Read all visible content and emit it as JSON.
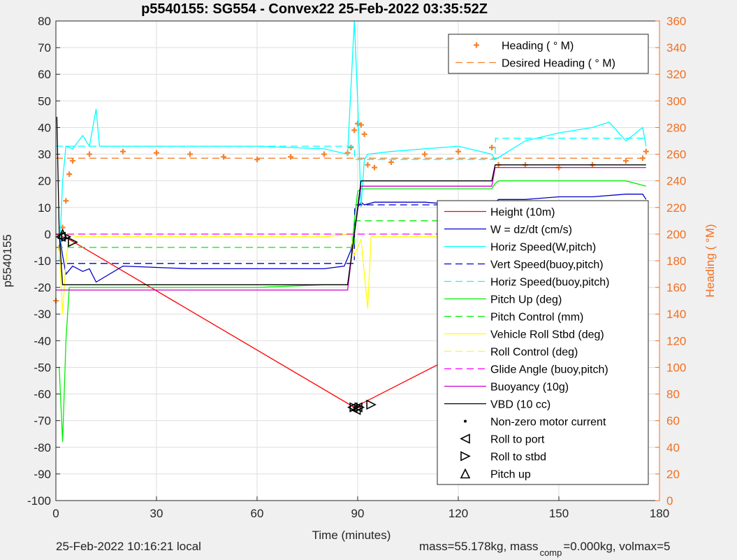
{
  "chart_data": {
    "type": "line",
    "title": "p5540155: SG554 - Convex22 25-Feb-2022 03:35:52Z",
    "xlabel": "Time (minutes)",
    "ylabel": "p5540155",
    "ylabel_right": "Heading (  °M)",
    "xlim": [
      0,
      180
    ],
    "ylim": [
      -100,
      80
    ],
    "ylim_right": [
      0,
      360
    ],
    "x_ticks": [
      0,
      30,
      60,
      90,
      120,
      150,
      180
    ],
    "y_ticks": [
      -100,
      -90,
      -80,
      -70,
      -60,
      -50,
      -40,
      -30,
      -20,
      -10,
      0,
      10,
      20,
      30,
      40,
      50,
      60,
      70,
      80
    ],
    "y_right_ticks": [
      0,
      20,
      40,
      60,
      80,
      100,
      120,
      140,
      160,
      180,
      200,
      220,
      240,
      260,
      280,
      300,
      320,
      340,
      360
    ],
    "grid": true,
    "legend_top_position": "top-right",
    "legend_main_position": "lower-right",
    "colors": {
      "red": "#ff0000",
      "blue": "#0000cc",
      "cyan": "#00ffff",
      "green": "#00ee00",
      "yellow": "#ffff00",
      "magenta": "#ff00ff",
      "purple": "#cc00cc",
      "black": "#000000",
      "orange": "#f5822e",
      "orange_axis": "#f26f21"
    },
    "series": [
      {
        "name": "Heading (  ° M)",
        "axis": "right",
        "style": "marker",
        "color": "#f5822e",
        "x": [
          0,
          1,
          2,
          3,
          4,
          5,
          10,
          20,
          30,
          40,
          50,
          60,
          70,
          80,
          87,
          88,
          89,
          90,
          91,
          92,
          93,
          95,
          100,
          110,
          120,
          130,
          132,
          140,
          150,
          160,
          170,
          175,
          176
        ],
        "y": [
          150,
          190,
          205,
          225,
          245,
          255,
          260,
          262,
          261,
          260,
          258,
          256,
          258,
          260,
          261,
          265,
          278,
          283,
          282,
          275,
          252,
          250,
          254,
          260,
          262,
          265,
          252,
          252,
          250,
          252,
          255,
          257,
          262
        ]
      },
      {
        "name": "Desired Heading (      ° M)",
        "axis": "right",
        "style": "dashed",
        "color": "#f5822e",
        "x": [
          0,
          176
        ],
        "y": [
          257,
          257
        ]
      },
      {
        "name": "Height (10m)",
        "axis": "left",
        "style": "solid",
        "color": "#ff0000",
        "x": [
          0,
          4,
          89,
          131,
          176
        ],
        "y": [
          0,
          -2,
          -65,
          -38,
          0
        ]
      },
      {
        "name": "W = dz/dt (cm/s)",
        "axis": "left",
        "style": "solid",
        "color": "#0000cc",
        "x": [
          1,
          2,
          3,
          5,
          8,
          10,
          12,
          20,
          40,
          60,
          80,
          86,
          88,
          89,
          90,
          91,
          92,
          95,
          110,
          120,
          130,
          131,
          132,
          140,
          150,
          160,
          170,
          175,
          176
        ],
        "y": [
          0,
          -8,
          -15,
          -12,
          -14,
          -13,
          -18,
          -12,
          -13,
          -13,
          -13,
          -12,
          -6,
          0,
          10,
          12,
          11,
          12,
          12,
          11,
          11,
          12,
          13,
          13,
          14,
          14,
          15,
          15,
          13
        ]
      },
      {
        "name": "Horiz Speed(W,pitch)",
        "axis": "left",
        "style": "solid",
        "color": "#00ffff",
        "x": [
          1,
          2,
          3,
          5,
          8,
          10,
          12,
          13,
          20,
          40,
          60,
          80,
          87,
          89,
          90,
          91,
          92,
          93,
          100,
          110,
          120,
          130,
          131,
          140,
          150,
          160,
          165,
          170,
          175,
          176
        ],
        "y": [
          -10,
          20,
          33,
          32,
          37,
          33,
          47,
          33,
          33,
          33,
          33,
          32,
          30,
          80,
          50,
          10,
          28,
          30,
          31,
          32,
          33,
          30,
          28,
          35,
          38,
          40,
          42,
          35,
          40,
          33
        ]
      },
      {
        "name": "Vert Speed(buoy,pitch)",
        "axis": "left",
        "style": "dashed",
        "color": "#0000cc",
        "x": [
          0,
          89,
          89.1,
          176
        ],
        "y": [
          -11,
          -11,
          11,
          11
        ]
      },
      {
        "name": "Horiz Speed(buoy,pitch)",
        "axis": "left",
        "style": "dashed",
        "color": "#00ffff",
        "x": [
          0,
          89,
          89.1,
          131,
          131.1,
          176
        ],
        "y": [
          33,
          33,
          28,
          28,
          36,
          36
        ]
      },
      {
        "name": "Pitch Up (deg)",
        "axis": "left",
        "style": "solid",
        "color": "#00ee00",
        "x": [
          1,
          2,
          3,
          4,
          6,
          10,
          20,
          40,
          60,
          80,
          87,
          88,
          89,
          90,
          91,
          92,
          100,
          110,
          120,
          130,
          131,
          132,
          140,
          150,
          160,
          170,
          176
        ],
        "y": [
          -50,
          -78,
          -40,
          -20,
          -20,
          -20,
          -20,
          -20,
          -20,
          -19,
          -19,
          -10,
          5,
          16,
          17,
          17,
          17,
          17,
          17,
          17,
          19,
          20,
          20,
          20,
          20,
          20,
          18
        ]
      },
      {
        "name": "Pitch Control (mm)",
        "axis": "left",
        "style": "dashed",
        "color": "#00ee00",
        "x": [
          0,
          89,
          89.1,
          176
        ],
        "y": [
          -5,
          -5,
          5,
          5
        ]
      },
      {
        "name": "Vehicle Roll Stbd (deg)",
        "axis": "left",
        "style": "solid",
        "color": "#ffff00",
        "x": [
          1,
          2,
          3,
          4,
          6,
          20,
          40,
          60,
          80,
          88,
          89,
          91,
          93,
          94,
          100,
          120,
          150,
          176
        ],
        "y": [
          -5,
          -30,
          -10,
          0,
          -1,
          -1,
          -1,
          -1,
          -1,
          0,
          -8,
          -2,
          -28,
          -1,
          -1,
          -1,
          -1,
          -1
        ]
      },
      {
        "name": "Roll Control (deg)",
        "axis": "left",
        "style": "dashed",
        "color": "#ffff00",
        "x": [
          0,
          176
        ],
        "y": [
          0,
          0
        ]
      },
      {
        "name": "Glide Angle (buoy,pitch)",
        "axis": "left",
        "style": "dashed",
        "color": "#ff00ff",
        "x": [
          0,
          176
        ],
        "y": [
          0,
          0
        ]
      },
      {
        "name": "Buoyancy (10g)",
        "axis": "left",
        "style": "solid",
        "color": "#cc00cc",
        "x": [
          0,
          2,
          3,
          87,
          89,
          91,
          130,
          131,
          176
        ],
        "y": [
          -21,
          -21,
          -21,
          -21,
          0,
          18,
          18,
          25,
          25
        ]
      },
      {
        "name": "VBD (10 cc)",
        "axis": "left",
        "style": "solid",
        "color": "#000000",
        "x": [
          0.3,
          1,
          2,
          3,
          87,
          89,
          91,
          130,
          131,
          176
        ],
        "y": [
          44,
          0,
          -19,
          -19,
          -19,
          0,
          20,
          20,
          26,
          26
        ]
      }
    ],
    "markers": [
      {
        "name": "Non-zero motor current",
        "symbol": "dot",
        "x": [
          168
        ],
        "y": [
          -5
        ]
      },
      {
        "name": "Roll to port",
        "symbol": "triangle-left",
        "x": [
          1.5,
          88.5,
          89.5,
          90
        ],
        "y": [
          -1,
          -65,
          -66,
          -65
        ]
      },
      {
        "name": "Roll to stbd",
        "symbol": "triangle-right",
        "x": [
          3,
          5,
          89,
          90.5,
          94
        ],
        "y": [
          -1,
          -3,
          -65,
          -65,
          -64
        ]
      },
      {
        "name": "Pitch up",
        "symbol": "triangle-up",
        "x": [
          2,
          130
        ],
        "y": [
          0,
          -38
        ]
      }
    ],
    "legend_top": [
      "Heading (  ° M)",
      "Desired Heading (      ° M)"
    ],
    "legend_main": [
      "Height (10m)",
      "W = dz/dt (cm/s)",
      "Horiz Speed(W,pitch)",
      "Vert Speed(buoy,pitch)",
      "Horiz Speed(buoy,pitch)",
      "Pitch Up (deg)",
      "Pitch Control (mm)",
      "Vehicle Roll Stbd (deg)",
      "Roll Control (deg)",
      "Glide Angle (buoy,pitch)",
      "Buoyancy (10g)",
      "VBD (10 cc)",
      "Non-zero motor current",
      "Roll to port",
      "Roll to stbd",
      "Pitch up"
    ]
  },
  "footer": {
    "local_time": "25-Feb-2022 10:16:21 local",
    "mass_text_1": "mass=55.178kg, mass",
    "mass_sub": "comp",
    "mass_text_2": "=0.000kg, volmax=5"
  }
}
